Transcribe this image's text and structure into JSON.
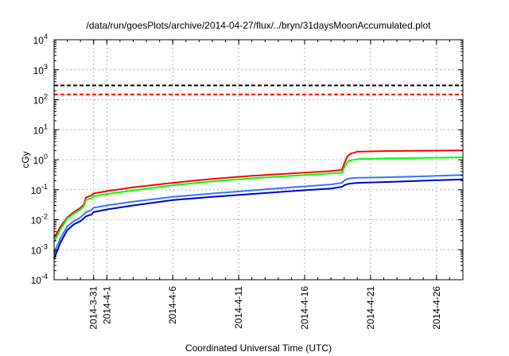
{
  "chart_data": {
    "type": "line",
    "title": "/data/run/goesPlots/archive/2014-04-27/flux/../bryn/31daysMoonAccumulated.plot",
    "xlabel": "Coordinated Universal Time (UTC)",
    "ylabel": "cGy",
    "y_scale": "log",
    "ylim_exponents": [
      -4,
      4
    ],
    "y_tick_labels": [
      {
        "base": "10",
        "exp": "-4"
      },
      {
        "base": "10",
        "exp": "-3"
      },
      {
        "base": "10",
        "exp": "-2"
      },
      {
        "base": "10",
        "exp": "-1"
      },
      {
        "base": "10",
        "exp": "0"
      },
      {
        "base": "10",
        "exp": "1"
      },
      {
        "base": "10",
        "exp": "2"
      },
      {
        "base": "10",
        "exp": "3"
      },
      {
        "base": "10",
        "exp": "4"
      }
    ],
    "xlim": [
      "2014-03-28",
      "2014-04-28"
    ],
    "x_ticks": [
      "2014-03-31",
      "2014-04-01",
      "2014-04-06",
      "2014-04-11",
      "2014-04-16",
      "2014-04-21",
      "2014-04-26"
    ],
    "x_tick_labels": [
      "2014-3-31",
      "2014-4-1",
      "2014-4-6",
      "2014-4-11",
      "2014-4-16",
      "2014-4-21",
      "2014-4-26"
    ],
    "grid": true,
    "reference_lines": [
      {
        "y": 300,
        "color": "#000000",
        "style": "dashed"
      },
      {
        "y": 150,
        "color": "#ff0000",
        "style": "dashed"
      }
    ],
    "series": [
      {
        "color": "#ff0000",
        "points": [
          [
            "2014-03-28",
            0.0025
          ],
          [
            "2014-03-28T12:00",
            0.006
          ],
          [
            "2014-03-29",
            0.012
          ],
          [
            "2014-03-29T12:00",
            0.018
          ],
          [
            "2014-03-30",
            0.025
          ],
          [
            "2014-03-30T06:00",
            0.032
          ],
          [
            "2014-03-30T10:00",
            0.055
          ],
          [
            "2014-03-30T20:00",
            0.065
          ],
          [
            "2014-03-31",
            0.075
          ],
          [
            "2014-04-01",
            0.09
          ],
          [
            "2014-04-03",
            0.12
          ],
          [
            "2014-04-06",
            0.17
          ],
          [
            "2014-04-09",
            0.23
          ],
          [
            "2014-04-12",
            0.29
          ],
          [
            "2014-04-15",
            0.35
          ],
          [
            "2014-04-18",
            0.42
          ],
          [
            "2014-04-18T20:00",
            0.46
          ],
          [
            "2014-04-19",
            0.75
          ],
          [
            "2014-04-19T06:00",
            1.3
          ],
          [
            "2014-04-19T12:00",
            1.6
          ],
          [
            "2014-04-20",
            1.85
          ],
          [
            "2014-04-22",
            1.95
          ],
          [
            "2014-04-25",
            2.0
          ],
          [
            "2014-04-28",
            2.05
          ]
        ]
      },
      {
        "color": "#00ff00",
        "points": [
          [
            "2014-03-28",
            0.0018
          ],
          [
            "2014-03-28T12:00",
            0.005
          ],
          [
            "2014-03-29",
            0.011
          ],
          [
            "2014-03-29T12:00",
            0.016
          ],
          [
            "2014-03-30",
            0.022
          ],
          [
            "2014-03-30T06:00",
            0.028
          ],
          [
            "2014-03-30T10:00",
            0.045
          ],
          [
            "2014-03-30T20:00",
            0.052
          ],
          [
            "2014-03-31",
            0.06
          ],
          [
            "2014-04-01",
            0.072
          ],
          [
            "2014-04-03",
            0.095
          ],
          [
            "2014-04-06",
            0.14
          ],
          [
            "2014-04-09",
            0.19
          ],
          [
            "2014-04-12",
            0.24
          ],
          [
            "2014-04-15",
            0.29
          ],
          [
            "2014-04-18",
            0.35
          ],
          [
            "2014-04-18T20:00",
            0.37
          ],
          [
            "2014-04-19",
            0.55
          ],
          [
            "2014-04-19T06:00",
            0.85
          ],
          [
            "2014-04-19T12:00",
            0.95
          ],
          [
            "2014-04-20",
            1.05
          ],
          [
            "2014-04-22",
            1.1
          ],
          [
            "2014-04-25",
            1.15
          ],
          [
            "2014-04-28",
            1.2
          ]
        ]
      },
      {
        "color": "#3377ff",
        "points": [
          [
            "2014-03-28",
            0.0008
          ],
          [
            "2014-03-28T12:00",
            0.0025
          ],
          [
            "2014-03-29",
            0.006
          ],
          [
            "2014-03-29T12:00",
            0.009
          ],
          [
            "2014-03-30",
            0.012
          ],
          [
            "2014-03-30T06:00",
            0.015
          ],
          [
            "2014-03-30T10:00",
            0.018
          ],
          [
            "2014-03-30T20:00",
            0.021
          ],
          [
            "2014-03-31",
            0.025
          ],
          [
            "2014-04-01",
            0.03
          ],
          [
            "2014-04-03",
            0.04
          ],
          [
            "2014-04-06",
            0.058
          ],
          [
            "2014-04-09",
            0.075
          ],
          [
            "2014-04-12",
            0.095
          ],
          [
            "2014-04-15",
            0.12
          ],
          [
            "2014-04-18",
            0.15
          ],
          [
            "2014-04-18T20:00",
            0.17
          ],
          [
            "2014-04-19",
            0.2
          ],
          [
            "2014-04-19T06:00",
            0.23
          ],
          [
            "2014-04-19T12:00",
            0.24
          ],
          [
            "2014-04-20",
            0.25
          ],
          [
            "2014-04-22",
            0.26
          ],
          [
            "2014-04-25",
            0.28
          ],
          [
            "2014-04-28",
            0.31
          ]
        ]
      },
      {
        "color": "#0000cc",
        "points": [
          [
            "2014-03-28",
            0.0005
          ],
          [
            "2014-03-28T12:00",
            0.0018
          ],
          [
            "2014-03-29",
            0.0045
          ],
          [
            "2014-03-29T12:00",
            0.007
          ],
          [
            "2014-03-30",
            0.009
          ],
          [
            "2014-03-30T06:00",
            0.011
          ],
          [
            "2014-03-30T10:00",
            0.013
          ],
          [
            "2014-03-30T20:00",
            0.015
          ],
          [
            "2014-03-31",
            0.018
          ],
          [
            "2014-04-01",
            0.022
          ],
          [
            "2014-04-03",
            0.03
          ],
          [
            "2014-04-06",
            0.045
          ],
          [
            "2014-04-09",
            0.058
          ],
          [
            "2014-04-12",
            0.072
          ],
          [
            "2014-04-15",
            0.09
          ],
          [
            "2014-04-18",
            0.11
          ],
          [
            "2014-04-18T20:00",
            0.125
          ],
          [
            "2014-04-19",
            0.14
          ],
          [
            "2014-04-19T06:00",
            0.155
          ],
          [
            "2014-04-19T12:00",
            0.16
          ],
          [
            "2014-04-20",
            0.17
          ],
          [
            "2014-04-22",
            0.18
          ],
          [
            "2014-04-25",
            0.2
          ],
          [
            "2014-04-28",
            0.22
          ]
        ]
      }
    ]
  }
}
